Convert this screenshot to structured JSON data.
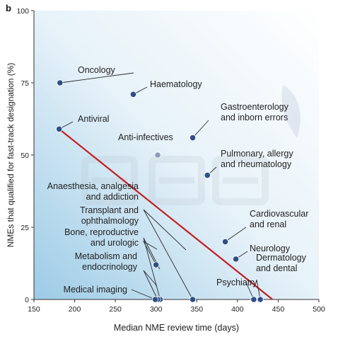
{
  "panel_label": "b",
  "chart_data": {
    "type": "scatter",
    "xlabel": "Median NME review time (days)",
    "ylabel": "NMEs that qualified for fast-track designation (%)",
    "xlim": [
      150,
      500
    ],
    "ylim": [
      0,
      100
    ],
    "xticks": [
      150,
      200,
      250,
      300,
      350,
      400,
      450,
      500
    ],
    "yticks": [
      0,
      25,
      50,
      75,
      100
    ],
    "colors": {
      "point": "#2d4f86",
      "point_light": "#8b9cb7",
      "trend": "#c41f1f",
      "axis": "#333333",
      "background_tint": "#9ccbe6"
    },
    "points": [
      {
        "label": "Oncology",
        "x": 182,
        "y": 75
      },
      {
        "label": "Haematology",
        "x": 272,
        "y": 71
      },
      {
        "label": "Antiviral",
        "x": 181,
        "y": 59
      },
      {
        "label": "Gastroenterology\nand inborn errors",
        "x": 345,
        "y": 56
      },
      {
        "label": "Anti-infectives",
        "x": 302,
        "y": 50,
        "light": true
      },
      {
        "label": "Pulmonary, allergy\nand rheumatology",
        "x": 363,
        "y": 43
      },
      {
        "label": "Cardiovascular\nand renal",
        "x": 385,
        "y": 20
      },
      {
        "label": "Neurology",
        "x": 398,
        "y": 14
      },
      {
        "label": "Bone, reproductive\nand urologic",
        "x": 300,
        "y": 12
      },
      {
        "label": "Anaesthesia, analgesia\nand addiction",
        "x": 345,
        "y": 0
      },
      {
        "label": "Transplant and\nophthalmology",
        "x": 305,
        "y": 0
      },
      {
        "label": "Metabolism and\nendocrinology",
        "x": 302,
        "y": 0
      },
      {
        "label": "Medical imaging",
        "x": 299,
        "y": 0
      },
      {
        "label": "Psychiatry",
        "x": 420,
        "y": 0
      },
      {
        "label": "Dermatology\nand dental",
        "x": 428,
        "y": 0
      }
    ],
    "trendline": {
      "x": [
        181,
        443
      ],
      "y": [
        59,
        0
      ]
    }
  }
}
